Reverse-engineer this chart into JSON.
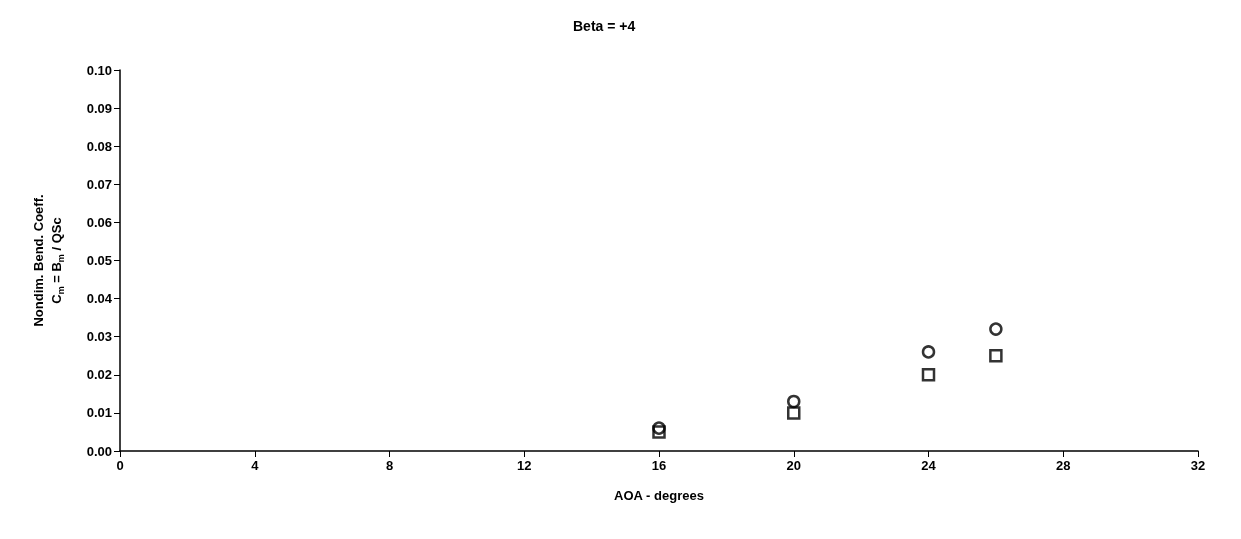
{
  "chart_data": {
    "type": "scatter",
    "title": "Beta = +4",
    "xlabel": "AOA - degrees",
    "ylabel": "Nondim. Bend. Coeff.\nC$_{m}$ = B$_{m}$ / QSc",
    "x": [
      16,
      20,
      24,
      26
    ],
    "series": [
      {
        "color": "#000000",
        "marker": "circle",
        "values": [
          0.006,
          0.013,
          0.026,
          0.032
        ]
      },
      {
        "color": "#000000",
        "marker": "square",
        "values": [
          0.005,
          0.01,
          0.02,
          0.025
        ]
      }
    ],
    "xlim": [
      0,
      32
    ],
    "xticks": [
      0,
      4,
      8,
      12,
      16,
      20,
      24,
      28,
      32
    ],
    "ylim": [
      0,
      0.1
    ],
    "yticks": [
      {
        "value": 0,
        "label": "0.00"
      },
      0.01,
      0.02,
      0.03,
      0.04,
      0.05,
      0.06,
      0.07,
      0.08,
      0.09,
      {
        "value": 0.1,
        "label": "0.10"
      }
    ],
    "grid": false
  }
}
